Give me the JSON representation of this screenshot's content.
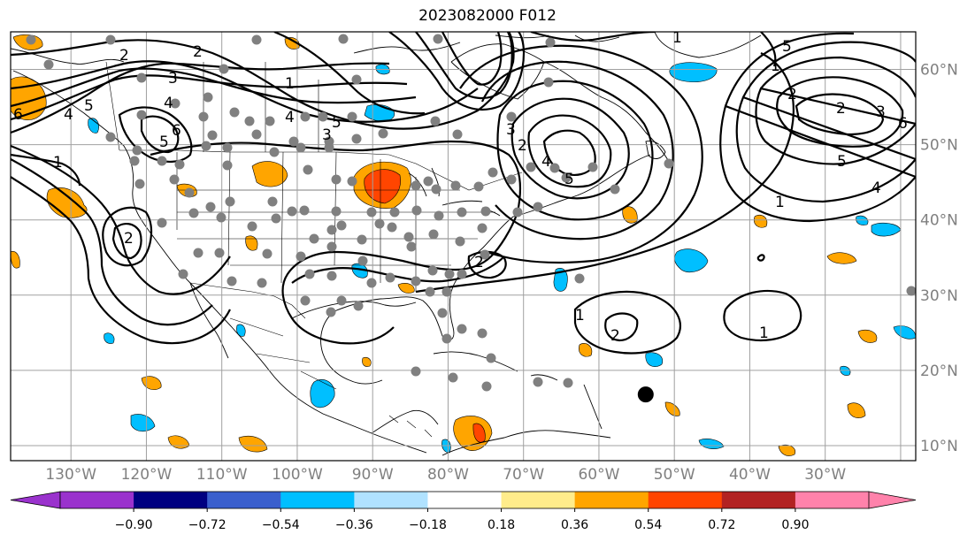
{
  "title": "2023082000 F012",
  "map": {
    "lon_range": [
      -138,
      -18
    ],
    "lat_range": [
      8,
      65
    ],
    "graticule_lons": [
      -130,
      -120,
      -110,
      -100,
      -90,
      -80,
      -70,
      -60,
      -50,
      -40,
      -30,
      -20
    ],
    "graticule_lats": [
      10,
      20,
      30,
      40,
      50,
      60
    ],
    "lon_labels": [
      "130°W",
      "120°W",
      "110°W",
      "100°W",
      "90°W",
      "80°W",
      "70°W",
      "60°W",
      "50°W",
      "40°W",
      "30°W"
    ],
    "lat_labels": [
      "10°N",
      "20°N",
      "30°N",
      "40°N",
      "50°N",
      "60°N"
    ],
    "grid_color": "#a0a0a0",
    "label_color": "#808080"
  },
  "colorbar": {
    "colors": [
      "#9a32cd",
      "#000080",
      "#3a5fcd",
      "#00bfff",
      "#b0e2ff",
      "#ffffff",
      "#ffec8b",
      "#ffa500",
      "#ff4500",
      "#b22222",
      "#ff82ab"
    ],
    "under_color": "#9a32cd",
    "over_color": "#ff82ab",
    "tick_labels": [
      "−0.90",
      "−0.72",
      "−0.54",
      "−0.36",
      "−0.18",
      "0.18",
      "0.36",
      "0.54",
      "0.72",
      "0.90"
    ]
  },
  "contour_labels": [
    "2",
    "3",
    "4",
    "5",
    "6",
    "1",
    "2",
    "4",
    "5",
    "6",
    "1",
    "4",
    "5",
    "3",
    "2",
    "2",
    "4",
    "5",
    "3",
    "2",
    "1",
    "6",
    "5",
    "2",
    "3",
    "4",
    "5",
    "2",
    "1",
    "1",
    "2",
    "1",
    "1"
  ],
  "marker": {
    "name": "storm-center",
    "lon": -53.8,
    "lat": 16.8,
    "color": "#000000"
  }
}
